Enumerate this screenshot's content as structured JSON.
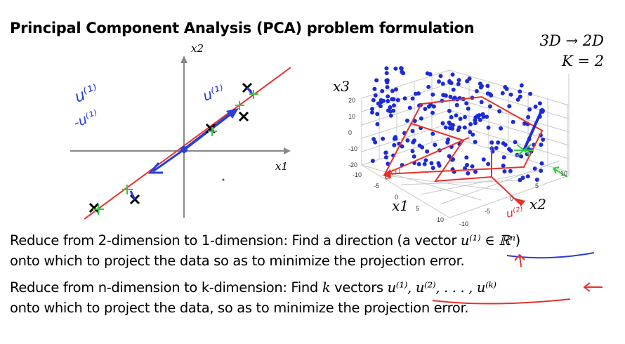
{
  "slide": {
    "title": "Principal Component Analysis (PCA) problem formulation",
    "corner_note": {
      "line1": "3D → 2D",
      "line2": "K = 2"
    }
  },
  "left_plot": {
    "x_axis_label": "x1",
    "y_axis_label": "x2",
    "annotations": {
      "u1_on_vector": "u⁽¹⁾",
      "u1_left": "u⁽¹⁾",
      "minus_u1_left": "-u⁽¹⁾"
    },
    "colors": {
      "line": "#e8302a",
      "vector": "#2a3fd8",
      "projection": "#2ecc40",
      "point": "#000000"
    }
  },
  "right_plot": {
    "z_axis_label": "x3",
    "x_axis_label": "x1",
    "y_axis_label": "x2",
    "z_ticks": [
      "20",
      "10",
      "0",
      "-10",
      "-20"
    ],
    "x_ticks": [
      "-10",
      "-5",
      "0",
      "5",
      "10"
    ],
    "y_ticks": [
      "-10",
      "-5",
      "0",
      "5",
      "10"
    ],
    "annotations": {
      "u1_label": "u⁽¹⁾",
      "u2_label": "u⁽²⁾"
    },
    "colors": {
      "points": "#1c2bd6",
      "plane": "#e8302a",
      "projection": "#2ecc40"
    }
  },
  "body": {
    "p1": {
      "line1_text": "Reduce from 2-dimension to 1-dimension: Find a direction (a vector",
      "line1_math": "u⁽¹⁾ ∈ ℝⁿ",
      "line1_close": ")",
      "line2": "onto which to project the data so as to minimize the projection error."
    },
    "p2": {
      "line1_text": "Reduce from n-dimension to k-dimension: Find",
      "line1_k": "k",
      "line1_vectors": "vectors",
      "line1_math": "u⁽¹⁾, u⁽²⁾, . . . , u⁽ᵏ⁾",
      "line2": "onto which to project the data, so as to minimize the projection error."
    }
  }
}
